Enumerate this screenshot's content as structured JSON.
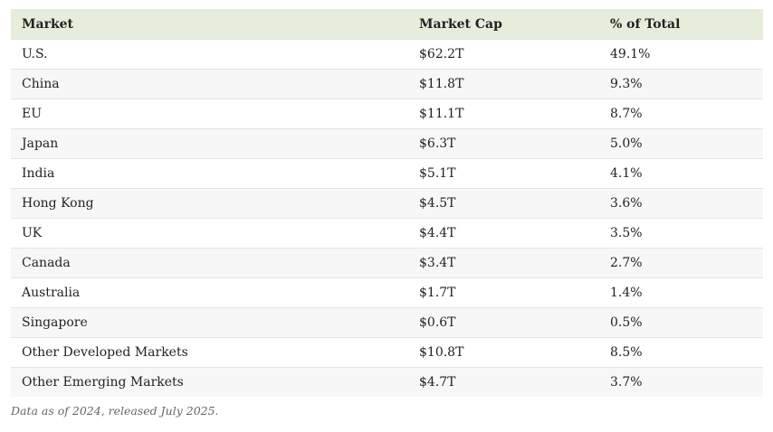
{
  "table": {
    "header": [
      "Market",
      "Market Cap",
      "% of Total"
    ],
    "rows": [
      [
        "U.S.",
        "$62.2T",
        "49.1%"
      ],
      [
        "China",
        "$11.8T",
        "9.3%"
      ],
      [
        "EU",
        "$11.1T",
        "8.7%"
      ],
      [
        "Japan",
        "$6.3T",
        "5.0%"
      ],
      [
        "India",
        "$5.1T",
        "4.1%"
      ],
      [
        "Hong Kong",
        "$4.5T",
        "3.6%"
      ],
      [
        "UK",
        "$4.4T",
        "3.5%"
      ],
      [
        "Canada",
        "$3.4T",
        "2.7%"
      ],
      [
        "Australia",
        "$1.7T",
        "1.4%"
      ],
      [
        "Singapore",
        "$0.6T",
        "0.5%"
      ],
      [
        "Other Developed Markets",
        "$10.8T",
        "8.5%"
      ],
      [
        "Other Emerging Markets",
        "$4.7T",
        "3.7%"
      ]
    ]
  },
  "note": "Data as of 2024, released July 2025."
}
